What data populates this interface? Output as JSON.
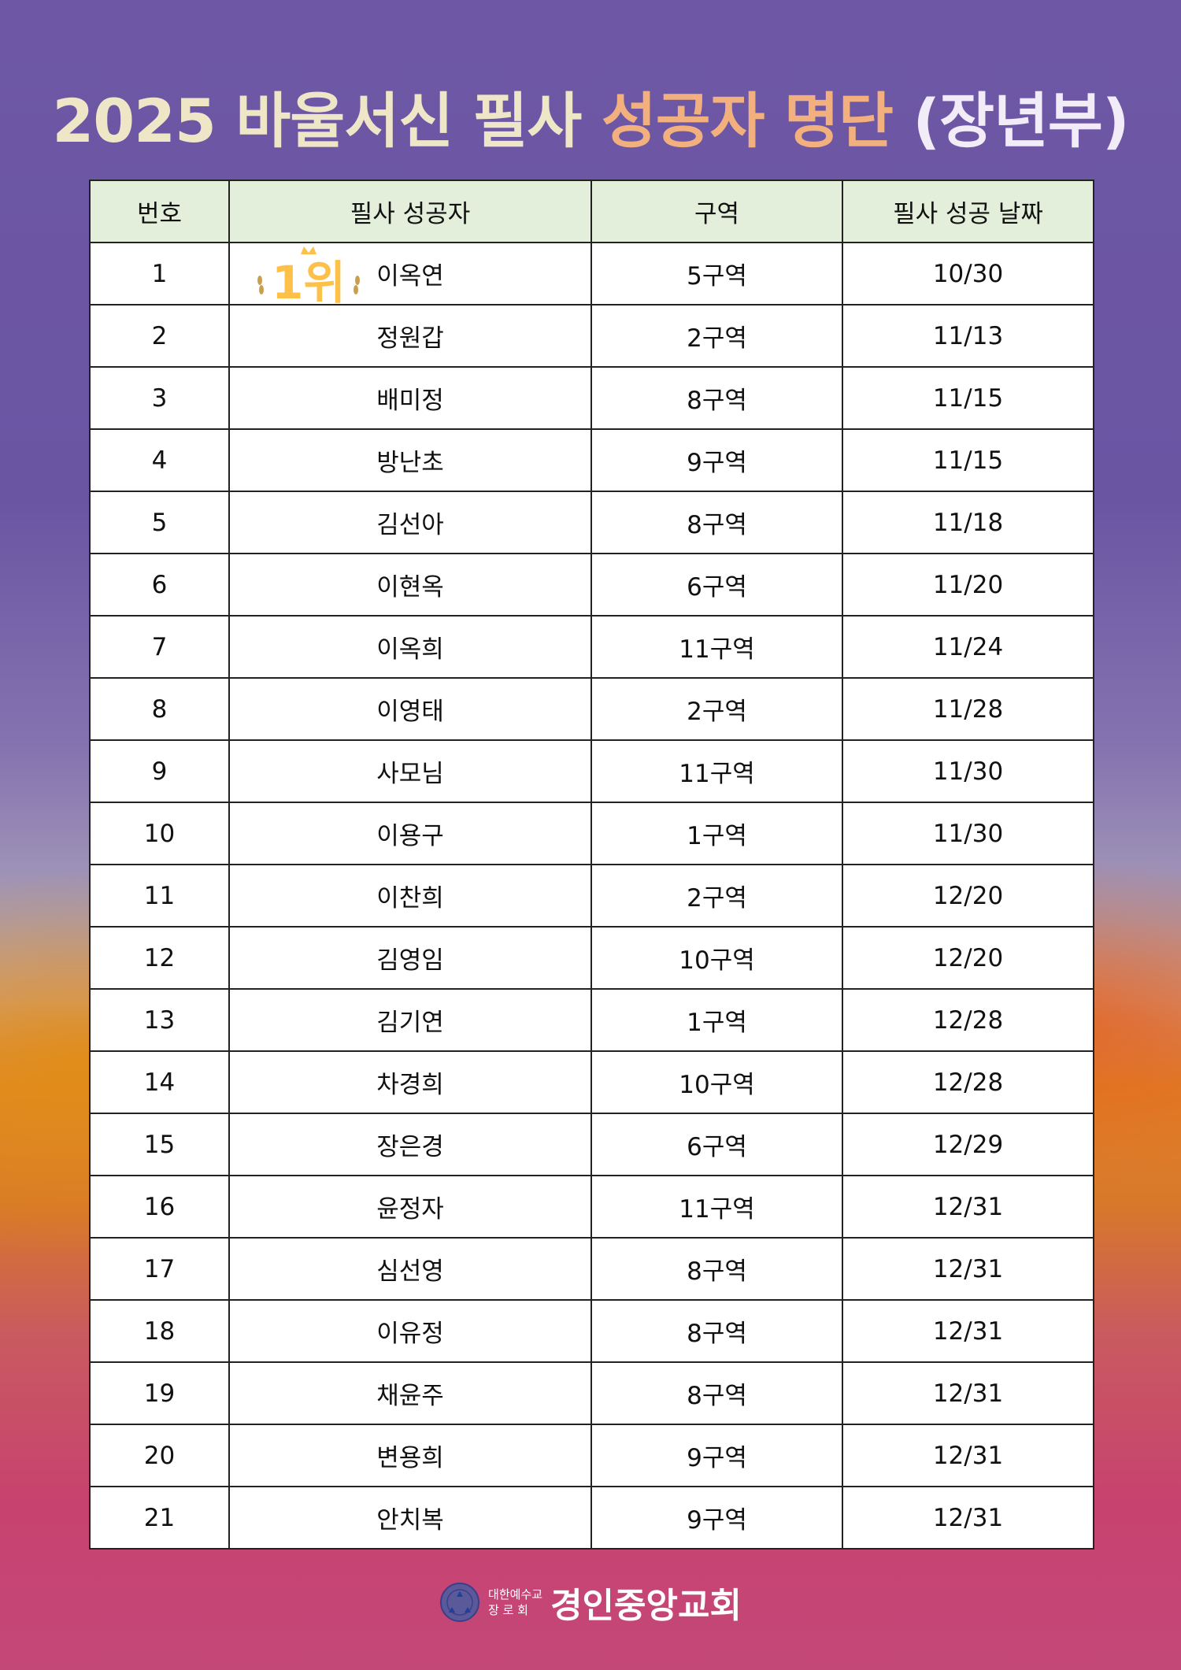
{
  "title": {
    "part1": "2025 바울서신 필사",
    "part2": "성공자 명단",
    "part3": "(장년부)"
  },
  "colors": {
    "title_main": "#eee6c6",
    "title_accent": "#f2b07e",
    "title_paren": "#f1ecf8",
    "header_bg": "#e3efdb",
    "badge": "#fdc14a"
  },
  "table": {
    "headers": [
      "번호",
      "필사 성공자",
      "구역",
      "필사 성공 날짜"
    ],
    "rows": [
      [
        "1",
        "이옥연",
        "5구역",
        "10/30"
      ],
      [
        "2",
        "정원갑",
        "2구역",
        "11/13"
      ],
      [
        "3",
        "배미정",
        "8구역",
        "11/15"
      ],
      [
        "4",
        "방난초",
        "9구역",
        "11/15"
      ],
      [
        "5",
        "김선아",
        "8구역",
        "11/18"
      ],
      [
        "6",
        "이현옥",
        "6구역",
        "11/20"
      ],
      [
        "7",
        "이옥희",
        "11구역",
        "11/24"
      ],
      [
        "8",
        "이영태",
        "2구역",
        "11/28"
      ],
      [
        "9",
        "사모님",
        "11구역",
        "11/30"
      ],
      [
        "10",
        "이용구",
        "1구역",
        "11/30"
      ],
      [
        "11",
        "이찬희",
        "2구역",
        "12/20"
      ],
      [
        "12",
        "김영임",
        "10구역",
        "12/20"
      ],
      [
        "13",
        "김기연",
        "1구역",
        "12/28"
      ],
      [
        "14",
        "차경희",
        "10구역",
        "12/28"
      ],
      [
        "15",
        "장은경",
        "6구역",
        "12/29"
      ],
      [
        "16",
        "윤정자",
        "11구역",
        "12/31"
      ],
      [
        "17",
        "심선영",
        "8구역",
        "12/31"
      ],
      [
        "18",
        "이유정",
        "8구역",
        "12/31"
      ],
      [
        "19",
        "채윤주",
        "8구역",
        "12/31"
      ],
      [
        "20",
        "변용희",
        "9구역",
        "12/31"
      ],
      [
        "21",
        "안치복",
        "9구역",
        "12/31"
      ]
    ],
    "first_place_badge": "1위"
  },
  "footer": {
    "denomination_line1": "대한예수교",
    "denomination_line2": "장 로 회",
    "church_name": "경인중앙교회",
    "logo_icon": "church-seal-icon"
  }
}
